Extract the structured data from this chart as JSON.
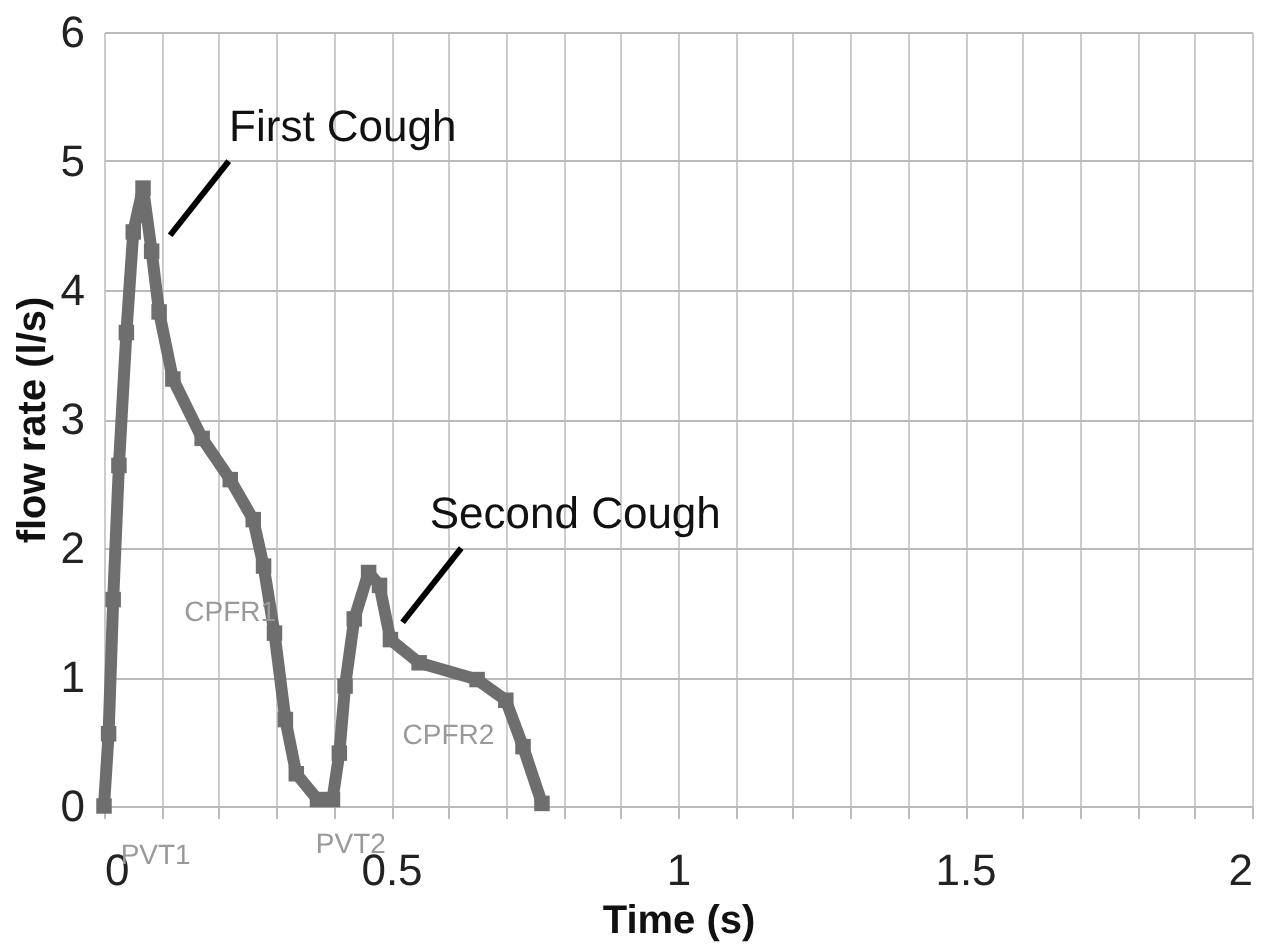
{
  "chart_data": {
    "type": "line",
    "xlabel": "Time (s)",
    "ylabel": "flow rate (l/s)",
    "xlim": [
      0,
      2
    ],
    "ylim": [
      0,
      6
    ],
    "xticks": [
      0,
      {
        "value": 0.1,
        "label": null
      },
      {
        "value": 0.2,
        "label": null
      },
      {
        "value": 0.3,
        "label": null
      },
      {
        "value": 0.4,
        "label": null
      },
      0.5,
      {
        "value": 0.6,
        "label": null
      },
      {
        "value": 0.7,
        "label": null
      },
      {
        "value": 0.8,
        "label": null
      },
      {
        "value": 0.9,
        "label": null
      },
      1,
      {
        "value": 1.1,
        "label": null
      },
      {
        "value": 1.2,
        "label": null
      },
      {
        "value": 1.3,
        "label": null
      },
      {
        "value": 1.4,
        "label": null
      },
      1.5,
      {
        "value": 1.6,
        "label": null
      },
      {
        "value": 1.7,
        "label": null
      },
      {
        "value": 1.8,
        "label": null
      },
      {
        "value": 1.9,
        "label": null
      },
      2
    ],
    "yticks": [
      0,
      1,
      2,
      3,
      4,
      5,
      6
    ],
    "grid": true,
    "marker": "square",
    "series": [
      {
        "color": "#6e6e6e",
        "x": [
          0,
          0.008,
          0.016,
          0.026,
          0.039,
          0.051,
          0.068,
          0.083,
          0.096,
          0.12,
          0.171,
          0.22,
          0.26,
          0.278,
          0.297,
          0.316,
          0.335,
          0.372,
          0.398,
          0.41,
          0.42,
          0.436,
          0.461,
          0.48,
          0.499,
          0.549,
          0.65,
          0.7,
          0.73,
          0.763
        ],
        "values": [
          0,
          0.56,
          1.6,
          2.64,
          3.67,
          4.45,
          4.79,
          4.3,
          3.83,
          3.31,
          2.85,
          2.53,
          2.22,
          1.86,
          1.34,
          0.67,
          0.25,
          0.05,
          0.05,
          0.41,
          0.93,
          1.45,
          1.81,
          1.71,
          1.29,
          1.11,
          0.98,
          0.82,
          0.46,
          0.02
        ]
      }
    ],
    "annotations": [
      {
        "text": "First Cough",
        "x": 0.085,
        "y": 4.3
      },
      {
        "text": "Second Cough",
        "x": 0.49,
        "y": 1.3
      },
      "CPFR1",
      "CPFR2",
      "PVT1",
      "PVT2"
    ]
  }
}
